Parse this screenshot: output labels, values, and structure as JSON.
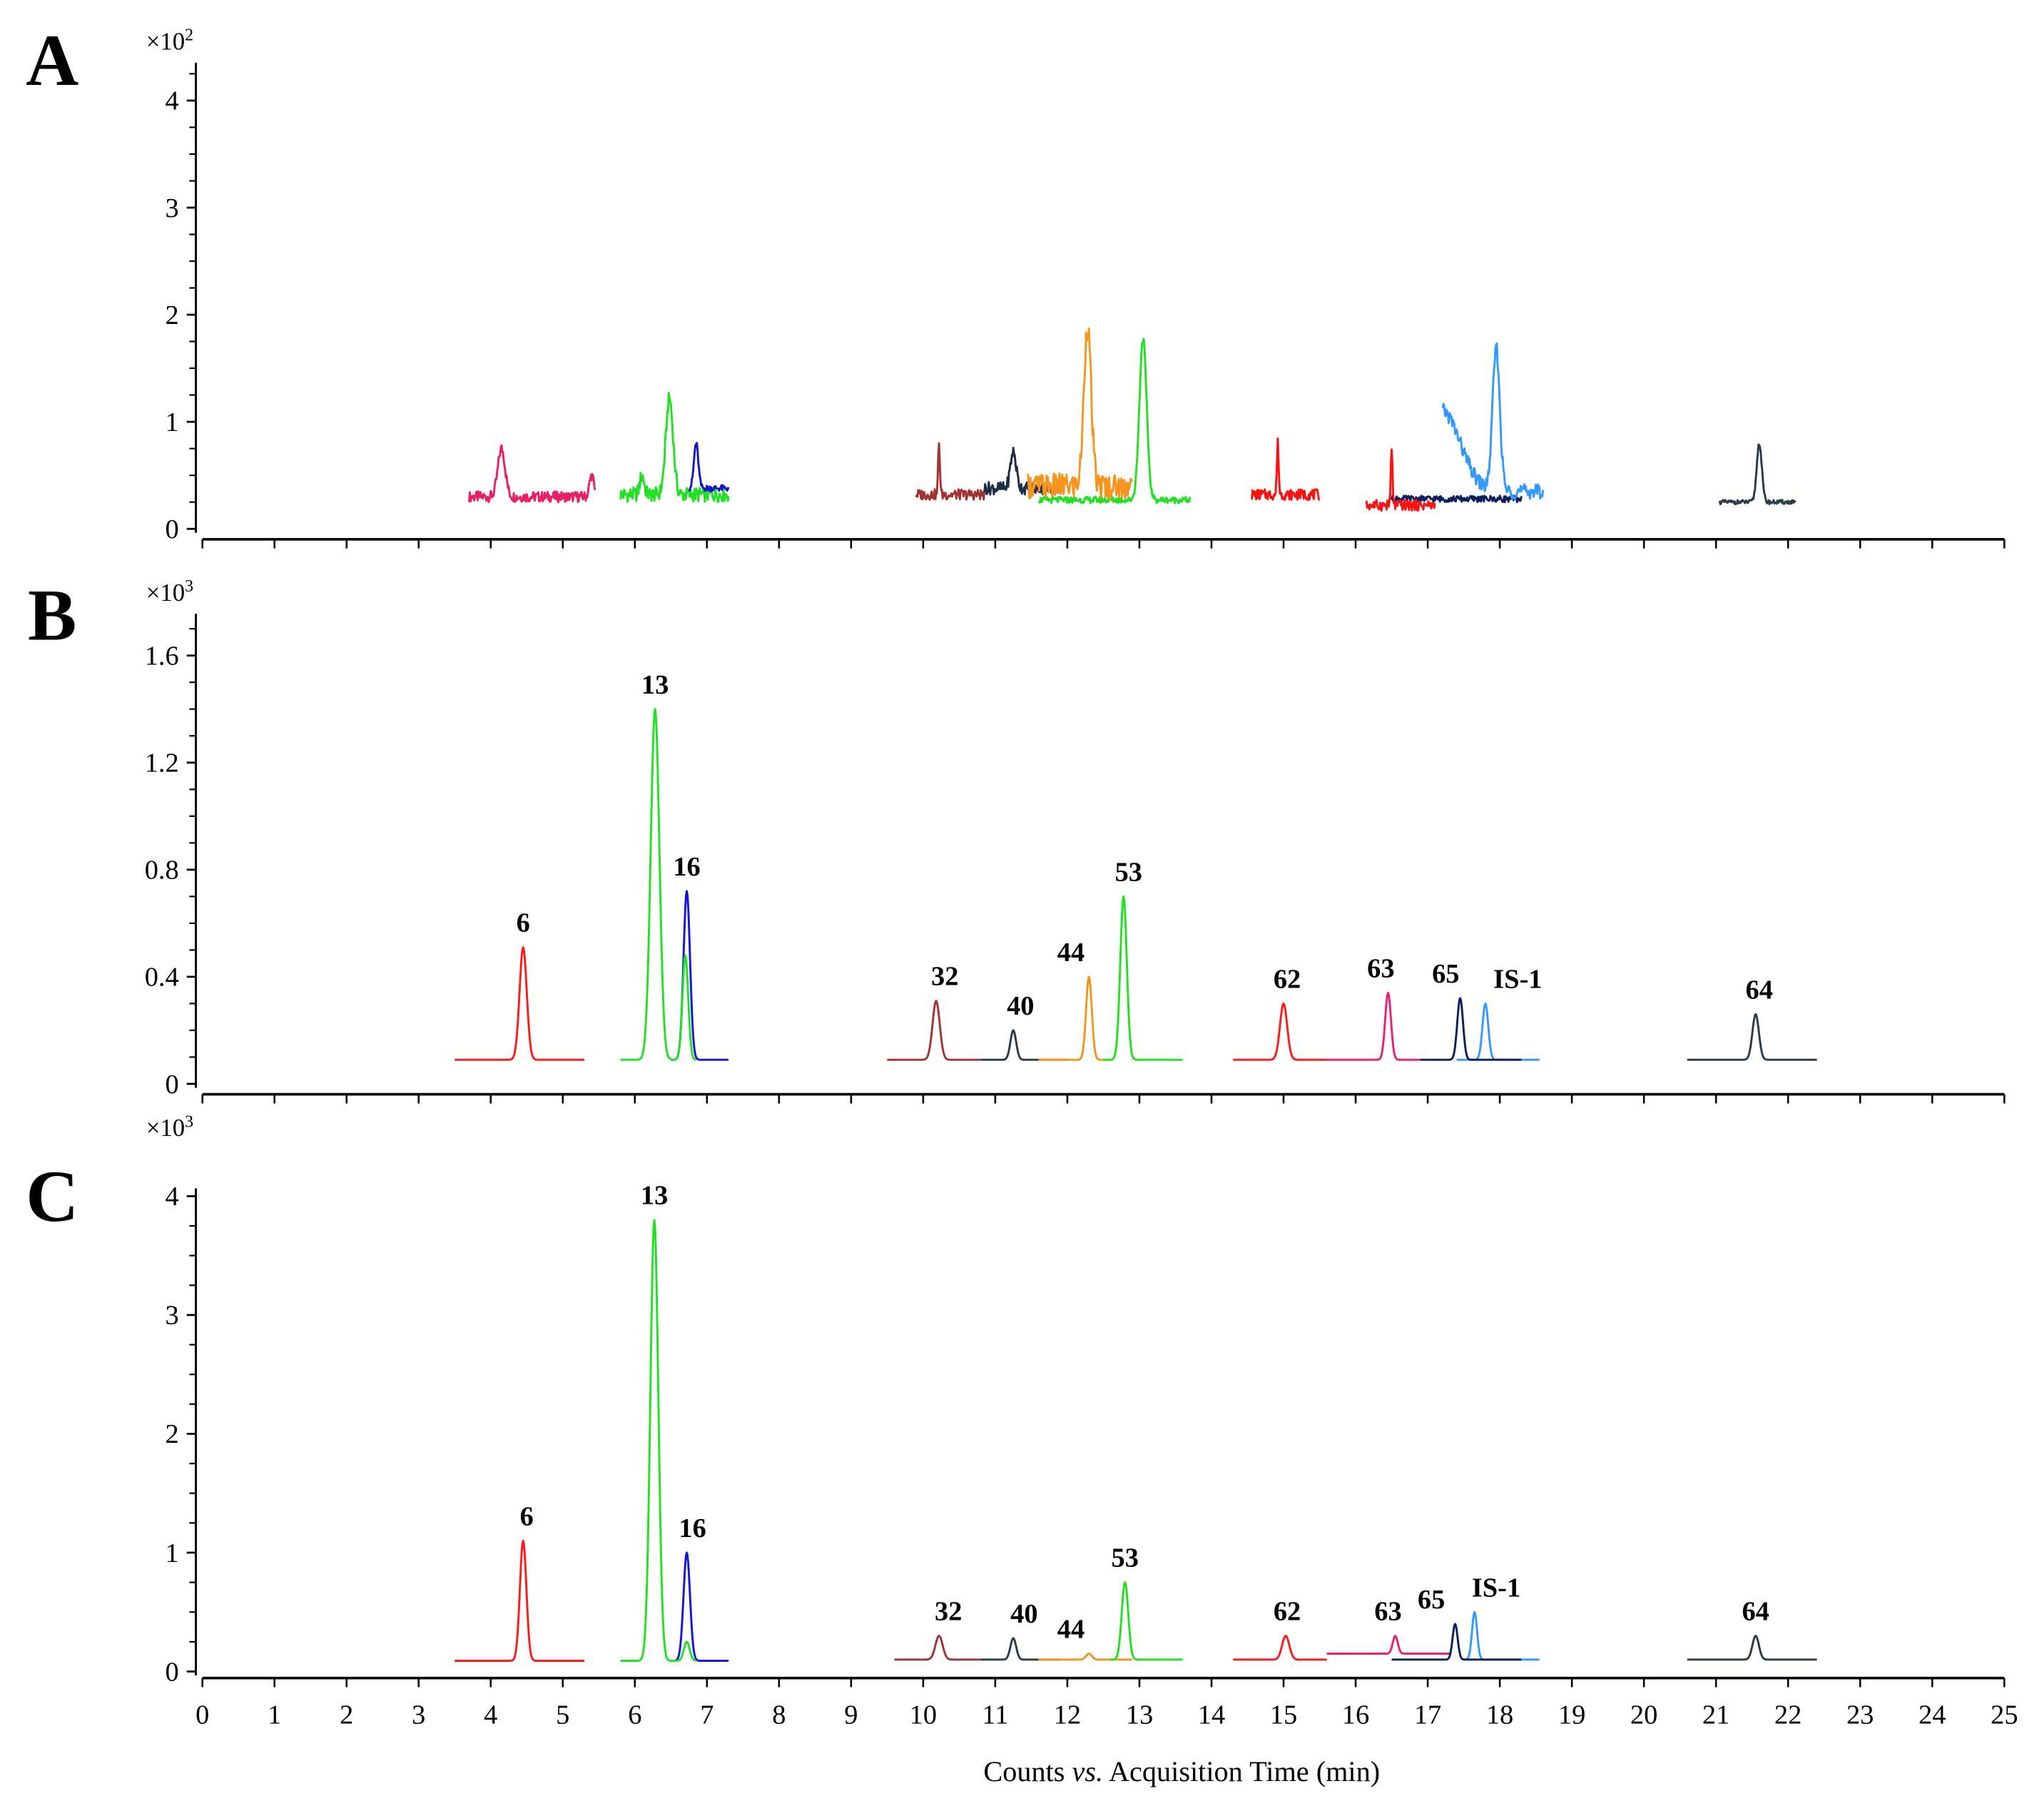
{
  "chart_data": {
    "type": "line",
    "xlabel": "Counts vs. Acquisition Time (min)",
    "xlabel_parts": {
      "pre": "Counts ",
      "italic": "vs.",
      "post": " Acquisition Time (min)"
    },
    "xlim": [
      0,
      25
    ],
    "xticks": [
      0,
      1,
      2,
      3,
      4,
      5,
      6,
      7,
      8,
      9,
      10,
      11,
      12,
      13,
      14,
      15,
      16,
      17,
      18,
      19,
      20,
      21,
      22,
      23,
      24,
      25
    ],
    "panels": [
      {
        "letter": "A",
        "multiplier": "×10",
        "multiplier_exp": "2",
        "ylim": [
          0,
          4.4
        ],
        "yticks": [
          0,
          1,
          2,
          3,
          4
        ],
        "ytick_labels": [
          "0",
          "1",
          "2",
          "3",
          "4"
        ],
        "minor_step": 0.25,
        "series": [
          {
            "color": "#e8206a",
            "range": [
              3.7,
              5.45
            ],
            "baseline": 0.3,
            "noise": 0.05,
            "peaks": [
              [
                4.15,
                0.75,
                0.05
              ],
              [
                5.4,
                0.5,
                0.03
              ]
            ]
          },
          {
            "color": "#22e022",
            "range": [
              5.8,
              7.3
            ],
            "baseline": 0.32,
            "noise": 0.07,
            "peaks": [
              [
                6.48,
                1.22,
                0.05
              ],
              [
                6.1,
                0.5,
                0.03
              ]
            ]
          },
          {
            "color": "#1414cc",
            "range": [
              6.75,
              7.3
            ],
            "baseline": 0.38,
            "noise": 0.03,
            "peaks": [
              [
                6.85,
                0.8,
                0.03
              ]
            ]
          },
          {
            "color": "#a33232",
            "range": [
              9.9,
              10.85
            ],
            "baseline": 0.32,
            "noise": 0.05,
            "peaks": [
              [
                10.22,
                0.8,
                0.012
              ]
            ]
          },
          {
            "color": "#1e2d47",
            "range": [
              10.85,
              11.95
            ],
            "baseline": 0.38,
            "noise": 0.06,
            "peaks": [
              [
                11.25,
                0.72,
                0.04
              ]
            ]
          },
          {
            "color": "#22e022",
            "range": [
              11.6,
              13.7
            ],
            "baseline": 0.27,
            "noise": 0.03,
            "peaks": [
              [
                13.05,
                1.78,
                0.05
              ]
            ]
          },
          {
            "color": "#f7941d",
            "range": [
              11.45,
              12.9
            ],
            "baseline": 0.4,
            "noise": 0.12,
            "peaks": [
              [
                12.28,
                1.9,
                0.05
              ]
            ]
          },
          {
            "color": "#ff1010",
            "range": [
              14.55,
              15.5
            ],
            "baseline": 0.32,
            "noise": 0.05,
            "peaks": [
              [
                14.92,
                0.8,
                0.012
              ]
            ]
          },
          {
            "color": "#0b1f5e",
            "range": [
              16.5,
              18.3
            ],
            "baseline": 0.28,
            "noise": 0.03,
            "peaks": []
          },
          {
            "color": "#ff1010",
            "range": [
              16.15,
              17.1
            ],
            "baseline": 0.22,
            "noise": 0.05,
            "peaks": [
              [
                16.5,
                0.73,
                0.012
              ]
            ]
          },
          {
            "color": "#3399ff",
            "range": [
              17.2,
              18.6
            ],
            "baseline": 0.35,
            "noise": 0.07,
            "peaks": [
              [
                17.95,
                1.68,
                0.05
              ],
              [
                17.2,
                1.1,
                0.25
              ]
            ]
          },
          {
            "color": "#2b3a4a",
            "range": [
              21.05,
              22.1
            ],
            "baseline": 0.25,
            "noise": 0.02,
            "peaks": [
              [
                21.6,
                0.8,
                0.035
              ]
            ]
          }
        ],
        "labels": []
      },
      {
        "letter": "B",
        "multiplier": "×10",
        "multiplier_exp": "3",
        "ylim": [
          0,
          1.75
        ],
        "yticks": [
          0,
          0.4,
          0.8,
          1.2,
          1.6
        ],
        "ytick_labels": [
          "0",
          "0.4",
          "0.8",
          "1.2",
          "1.6"
        ],
        "minor_step": 0.1,
        "series": [
          {
            "color": "#ff1a1a",
            "range": [
              3.5,
              5.3
            ],
            "baseline": 0.09,
            "noise": 0,
            "peaks": [
              [
                4.45,
                0.51,
                0.05
              ]
            ]
          },
          {
            "color": "#1414dd",
            "range": [
              6.5,
              7.3
            ],
            "baseline": 0.09,
            "noise": 0,
            "peaks": [
              [
                6.72,
                0.72,
                0.045
              ]
            ]
          },
          {
            "color": "#22e022",
            "range": [
              5.8,
              6.85
            ],
            "baseline": 0.09,
            "noise": 0,
            "peaks": [
              [
                6.28,
                1.4,
                0.06
              ],
              [
                6.7,
                0.48,
                0.04
              ]
            ]
          },
          {
            "color": "#a33232",
            "range": [
              9.5,
              10.8
            ],
            "baseline": 0.09,
            "noise": 0,
            "peaks": [
              [
                10.18,
                0.31,
                0.05
              ]
            ]
          },
          {
            "color": "#2b3a4a",
            "range": [
              10.8,
              12.0
            ],
            "baseline": 0.09,
            "noise": 0,
            "peaks": [
              [
                11.25,
                0.2,
                0.04
              ]
            ]
          },
          {
            "color": "#f7941d",
            "range": [
              11.6,
              12.6
            ],
            "baseline": 0.09,
            "noise": 0,
            "peaks": [
              [
                12.3,
                0.4,
                0.04
              ]
            ]
          },
          {
            "color": "#22e022",
            "range": [
              12.5,
              13.6
            ],
            "baseline": 0.09,
            "noise": 0,
            "peaks": [
              [
                12.78,
                0.7,
                0.045
              ]
            ]
          },
          {
            "color": "#ff1a1a",
            "range": [
              14.3,
              15.6
            ],
            "baseline": 0.09,
            "noise": 0,
            "peaks": [
              [
                15.0,
                0.3,
                0.05
              ]
            ]
          },
          {
            "color": "#ec1f75",
            "range": [
              15.6,
              16.9
            ],
            "baseline": 0.09,
            "noise": 0,
            "peaks": [
              [
                16.45,
                0.34,
                0.04
              ]
            ]
          },
          {
            "color": "#3399ff",
            "range": [
              17.4,
              18.55
            ],
            "baseline": 0.09,
            "noise": 0,
            "peaks": [
              [
                17.8,
                0.3,
                0.04
              ]
            ]
          },
          {
            "color": "#0b1f5e",
            "range": [
              16.9,
              18.3
            ],
            "baseline": 0.09,
            "noise": 0,
            "peaks": [
              [
                17.45,
                0.32,
                0.04
              ]
            ]
          },
          {
            "color": "#2b3a4a",
            "range": [
              20.6,
              22.4
            ],
            "baseline": 0.09,
            "noise": 0,
            "peaks": [
              [
                21.55,
                0.26,
                0.045
              ]
            ]
          }
        ],
        "labels": [
          {
            "text": "6",
            "rt": 4.45,
            "y": 0.51
          },
          {
            "text": "13",
            "rt": 6.28,
            "y": 1.4
          },
          {
            "text": "16",
            "rt": 6.72,
            "y": 0.72
          },
          {
            "text": "32",
            "rt": 10.3,
            "y": 0.31
          },
          {
            "text": "40",
            "rt": 11.35,
            "y": 0.2
          },
          {
            "text": "44",
            "rt": 12.05,
            "y": 0.4
          },
          {
            "text": "53",
            "rt": 12.85,
            "y": 0.7
          },
          {
            "text": "62",
            "rt": 15.05,
            "y": 0.3
          },
          {
            "text": "63",
            "rt": 16.35,
            "y": 0.34
          },
          {
            "text": "65",
            "rt": 17.25,
            "y": 0.32
          },
          {
            "text": "IS-1",
            "rt": 18.25,
            "y": 0.3
          },
          {
            "text": "64",
            "rt": 21.6,
            "y": 0.26
          }
        ]
      },
      {
        "letter": "C",
        "multiplier": "×10",
        "multiplier_exp": "3",
        "ylim": [
          0,
          4.1
        ],
        "yticks": [
          0,
          1,
          2,
          3,
          4
        ],
        "ytick_labels": [
          "0",
          "1",
          "2",
          "3",
          "4"
        ],
        "minor_step": 0.25,
        "series": [
          {
            "color": "#ff1a1a",
            "range": [
              3.5,
              5.3
            ],
            "baseline": 0.09,
            "noise": 0,
            "peaks": [
              [
                4.45,
                1.1,
                0.045
              ]
            ]
          },
          {
            "color": "#1414dd",
            "range": [
              6.5,
              7.3
            ],
            "baseline": 0.09,
            "noise": 0,
            "peaks": [
              [
                6.72,
                1.0,
                0.045
              ]
            ]
          },
          {
            "color": "#22e022",
            "range": [
              5.8,
              6.85
            ],
            "baseline": 0.09,
            "noise": 0,
            "peaks": [
              [
                6.27,
                3.8,
                0.055
              ],
              [
                6.72,
                0.25,
                0.04
              ]
            ]
          },
          {
            "color": "#a33232",
            "range": [
              9.6,
              10.8
            ],
            "baseline": 0.1,
            "noise": 0,
            "peaks": [
              [
                10.22,
                0.3,
                0.05
              ]
            ]
          },
          {
            "color": "#2b3a4a",
            "range": [
              10.8,
              11.9
            ],
            "baseline": 0.1,
            "noise": 0,
            "peaks": [
              [
                11.25,
                0.28,
                0.04
              ]
            ]
          },
          {
            "color": "#f7941d",
            "range": [
              11.6,
              12.9
            ],
            "baseline": 0.1,
            "noise": 0,
            "peaks": [
              [
                12.3,
                0.15,
                0.04
              ]
            ]
          },
          {
            "color": "#22e022",
            "range": [
              12.6,
              13.6
            ],
            "baseline": 0.1,
            "noise": 0,
            "peaks": [
              [
                12.8,
                0.75,
                0.045
              ]
            ]
          },
          {
            "color": "#ff1a1a",
            "range": [
              14.3,
              15.6
            ],
            "baseline": 0.1,
            "noise": 0,
            "peaks": [
              [
                15.03,
                0.3,
                0.05
              ]
            ]
          },
          {
            "color": "#ec1f75",
            "range": [
              15.6,
              17.3
            ],
            "baseline": 0.15,
            "noise": 0,
            "peaks": [
              [
                16.55,
                0.3,
                0.035
              ]
            ]
          },
          {
            "color": "#3399ff",
            "range": [
              17.5,
              18.55
            ],
            "baseline": 0.1,
            "noise": 0,
            "peaks": [
              [
                17.65,
                0.5,
                0.035
              ]
            ]
          },
          {
            "color": "#0b1f5e",
            "range": [
              16.5,
              18.3
            ],
            "baseline": 0.1,
            "noise": 0,
            "peaks": [
              [
                17.38,
                0.4,
                0.035
              ]
            ]
          },
          {
            "color": "#2b3a4a",
            "range": [
              20.6,
              22.4
            ],
            "baseline": 0.1,
            "noise": 0,
            "peaks": [
              [
                21.55,
                0.3,
                0.045
              ]
            ]
          }
        ],
        "labels": [
          {
            "text": "6",
            "rt": 4.5,
            "y": 1.1
          },
          {
            "text": "13",
            "rt": 6.27,
            "y": 3.8
          },
          {
            "text": "16",
            "rt": 6.8,
            "y": 1.0
          },
          {
            "text": "32",
            "rt": 10.35,
            "y": 0.3
          },
          {
            "text": "40",
            "rt": 11.4,
            "y": 0.28
          },
          {
            "text": "44",
            "rt": 12.05,
            "y": 0.15
          },
          {
            "text": "53",
            "rt": 12.8,
            "y": 0.75
          },
          {
            "text": "62",
            "rt": 15.05,
            "y": 0.3
          },
          {
            "text": "63",
            "rt": 16.45,
            "y": 0.3
          },
          {
            "text": "65",
            "rt": 17.05,
            "y": 0.4
          },
          {
            "text": "IS-1",
            "rt": 17.95,
            "y": 0.5
          },
          {
            "text": "64",
            "rt": 21.55,
            "y": 0.3
          }
        ]
      }
    ]
  }
}
